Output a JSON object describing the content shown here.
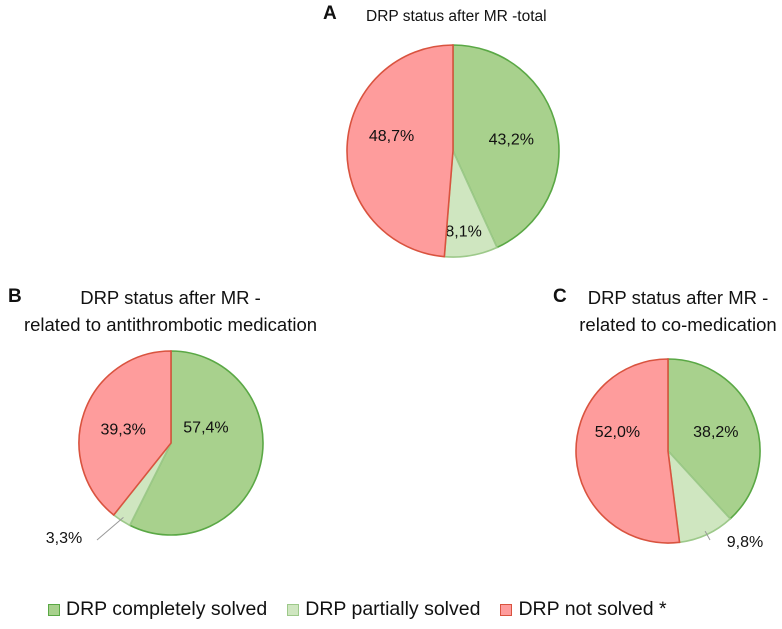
{
  "colors": {
    "completely": "#a8d18d",
    "completely_edge": "#5aa845",
    "partially": "#cfe6c0",
    "partially_edge": "#9dc98a",
    "not": "#fe9c9c",
    "not_edge": "#d9533f"
  },
  "legend": {
    "completely": "DRP completely solved",
    "partially": "DRP partially solved",
    "not": "DRP not solved *"
  },
  "chart_data": [
    {
      "type": "pie",
      "panel": "A",
      "title": "DRP status after MR -total",
      "categories": [
        "DRP completely solved",
        "DRP partially solved",
        "DRP not solved *"
      ],
      "values": [
        43.2,
        8.1,
        48.7
      ],
      "labels": [
        "43,2%",
        "8,1%",
        "48,7%"
      ]
    },
    {
      "type": "pie",
      "panel": "B",
      "title_line1": "DRP status after MR -",
      "title_line2": "related to antithrombotic medication",
      "categories": [
        "DRP completely solved",
        "DRP partially solved",
        "DRP not solved *"
      ],
      "values": [
        57.4,
        3.3,
        39.3
      ],
      "labels": [
        "57,4%",
        "3,3%",
        "39,3%"
      ]
    },
    {
      "type": "pie",
      "panel": "C",
      "title_line1": "DRP status after MR -",
      "title_line2": "related to co-medication",
      "categories": [
        "DRP completely solved",
        "DRP partially solved",
        "DRP not solved *"
      ],
      "values": [
        38.2,
        9.8,
        52.0
      ],
      "labels": [
        "38,2%",
        "9,8%",
        "52,0%"
      ]
    }
  ]
}
